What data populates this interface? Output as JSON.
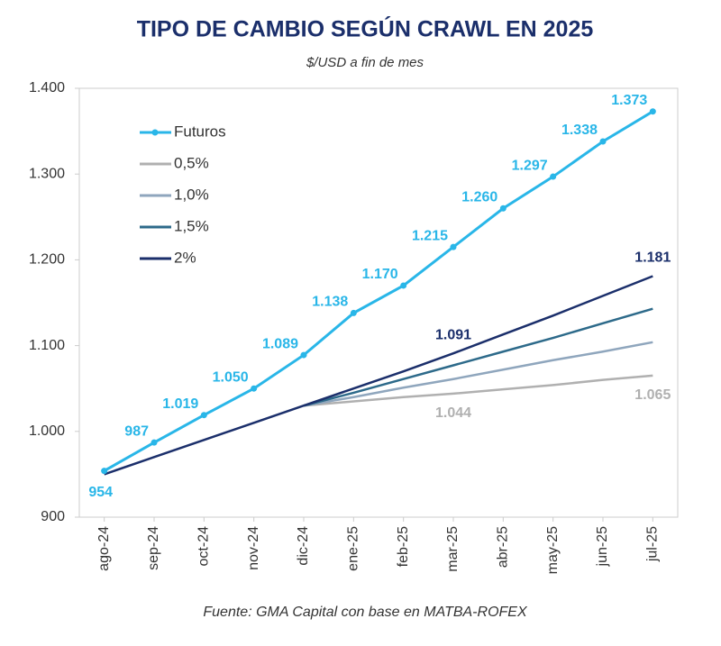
{
  "chart_data": {
    "type": "line",
    "title": "TIPO DE CAMBIO SEGÚN CRAWL EN 2025",
    "subtitle": "$/USD a fin de mes",
    "source": "Fuente: GMA Capital con base en MATBA-ROFEX",
    "categories": [
      "ago-24",
      "sep-24",
      "oct-24",
      "nov-24",
      "dic-24",
      "ene-25",
      "feb-25",
      "mar-25",
      "abr-25",
      "may-25",
      "jun-25",
      "jul-25"
    ],
    "ylim": [
      900,
      1400
    ],
    "yticks": [
      900,
      {
        "value": 1000,
        "label": "1.000"
      },
      {
        "value": 1100,
        "label": "1.100"
      },
      {
        "value": 1200,
        "label": "1.200"
      },
      {
        "value": 1300,
        "label": "1.300"
      },
      {
        "value": 1400,
        "label": "1.400"
      }
    ],
    "legend": "upper left",
    "series": [
      {
        "name": "Futuros",
        "color": "#29b6e8",
        "markers": true,
        "values": [
          954,
          987,
          1019,
          1050,
          1089,
          1138,
          1170,
          1215,
          1260,
          1297,
          1338,
          1373
        ],
        "value_labels": [
          "954",
          "987",
          "1.019",
          "1.050",
          "1.089",
          "1.138",
          "1.170",
          "1.215",
          "1.260",
          "1.297",
          "1.338",
          "1.373"
        ]
      },
      {
        "name": "0,5%",
        "color": "#b0b0b0",
        "values": [
          null,
          null,
          null,
          null,
          1030,
          1035,
          1040,
          1044,
          1049,
          1054,
          1060,
          1065
        ],
        "value_labels": [
          null,
          null,
          null,
          null,
          null,
          null,
          null,
          "1.044",
          null,
          null,
          null,
          "1.065"
        ]
      },
      {
        "name": "1,0%",
        "color": "#8fa6bd",
        "values": [
          null,
          null,
          null,
          null,
          1030,
          1040,
          1051,
          1061,
          1072,
          1083,
          1093,
          1104
        ]
      },
      {
        "name": "1,5%",
        "color": "#2d6a8a",
        "values": [
          null,
          null,
          null,
          null,
          1030,
          1045,
          1061,
          1077,
          1093,
          1109,
          1126,
          1143
        ]
      },
      {
        "name": "2%",
        "color": "#1b2f6b",
        "values": [
          950,
          970,
          990,
          1010,
          1030,
          1050,
          1070,
          1091,
          1113,
          1135,
          1158,
          1181
        ],
        "value_labels": [
          null,
          null,
          null,
          null,
          null,
          null,
          null,
          "1.091",
          null,
          null,
          null,
          "1.181"
        ]
      }
    ]
  }
}
